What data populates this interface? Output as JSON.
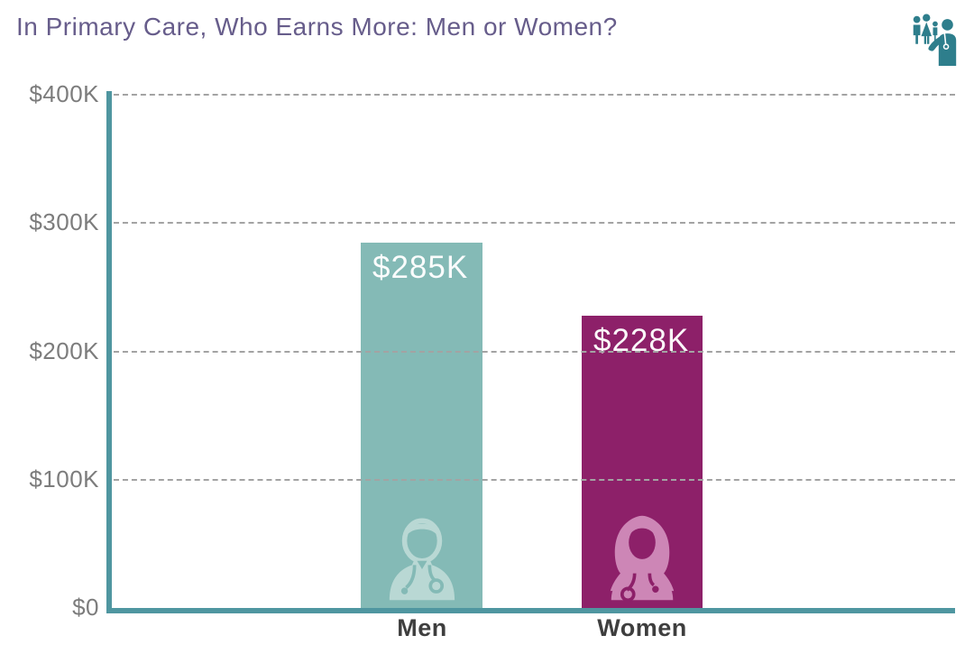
{
  "header": {
    "title": "In Primary Care, Who Earns More: Men or Women?",
    "logo_icon": "family-doctor-logo"
  },
  "chart_data": {
    "type": "bar",
    "title": "In Primary Care, Who Earns More: Men or Women?",
    "categories": [
      "Men",
      "Women"
    ],
    "values": [
      285,
      228
    ],
    "value_labels": [
      "$285K",
      "$228K"
    ],
    "units": "thousands of USD, annual earnings",
    "ylim": [
      0,
      400
    ],
    "yticks": [
      0,
      100,
      200,
      300,
      400
    ],
    "ytick_labels": [
      "$0",
      "$100K",
      "$200K",
      "$300K",
      "$400K"
    ],
    "grid": "horizontal-dashed",
    "legend": "none",
    "bar_colors": [
      "#84bab6",
      "#8d2069"
    ],
    "bar_icons": [
      "male-doctor-icon",
      "female-doctor-icon"
    ],
    "colors": {
      "title_text": "#675d8b",
      "axis": "#4f96a0",
      "gridline": "#a3a3a3",
      "tick_label": "#7c7c7c",
      "category_label": "#3e3e3e",
      "value_label": "#ffffff",
      "logo": "#2e7e8c",
      "men_icon": "#b9d8d4",
      "women_icon": "#cd86b6"
    }
  }
}
